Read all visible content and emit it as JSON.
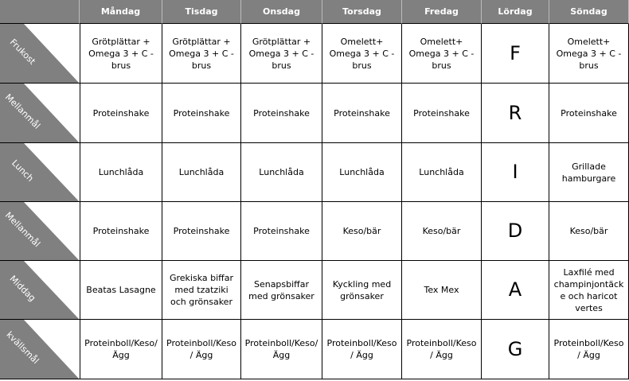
{
  "header": {
    "days": [
      "Måndag",
      "Tisdag",
      "Onsdag",
      "Torsdag",
      "Fredag",
      "Lördag",
      "Söndag"
    ]
  },
  "rows": [
    {
      "label": "Frukost",
      "cells": [
        "Grötplättar + Omega 3 + C - brus",
        "Grötplättar + Omega 3 + C - brus",
        "Grötplättar + Omega 3 + C - brus",
        "Omelett+ Omega 3 + C - brus",
        "Omelett+ Omega 3 + C - brus",
        "F",
        "Omelett+ Omega 3 + C - brus"
      ]
    },
    {
      "label": "Mellanmål",
      "cells": [
        "Proteinshake",
        "Proteinshake",
        "Proteinshake",
        "Proteinshake",
        "Proteinshake",
        "R",
        "Proteinshake"
      ]
    },
    {
      "label": "Lunch",
      "cells": [
        "Lunchlåda",
        "Lunchlåda",
        "Lunchlåda",
        "Lunchlåda",
        "Lunchlåda",
        "I",
        "Grillade hamburgare"
      ]
    },
    {
      "label": "Mellanmål",
      "cells": [
        "Proteinshake",
        "Proteinshake",
        "Proteinshake",
        "Keso/bär",
        "Keso/bär",
        "D",
        "Keso/bär"
      ]
    },
    {
      "label": "Middag",
      "cells": [
        "Beatas Lasagne",
        "Grekiska biffar med tzatziki och grönsaker",
        "Senapsbiffar med grönsaker",
        "Kyckling med grönsaker",
        "Tex Mex",
        "A",
        "Laxfilé med champinjontäcke och haricot vertes"
      ]
    },
    {
      "label": "kvällsmål",
      "cells": [
        "Proteinboll/Keso/Ägg",
        "Proteinboll/Keso / Ägg",
        "Proteinboll/Keso/ Ägg",
        "Proteinboll/Keso / Ägg",
        "Proteinboll/Keso / Ägg",
        "G",
        "Proteinboll/Keso / Ägg"
      ]
    }
  ]
}
